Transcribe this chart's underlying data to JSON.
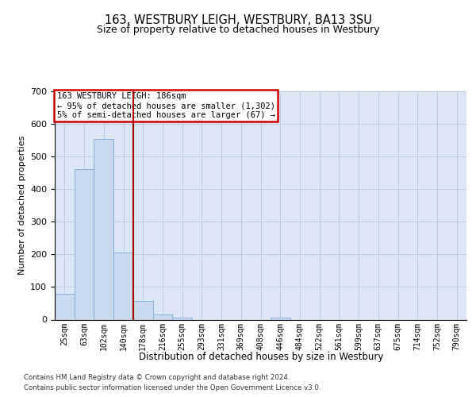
{
  "title": "163, WESTBURY LEIGH, WESTBURY, BA13 3SU",
  "subtitle": "Size of property relative to detached houses in Westbury",
  "xlabel": "Distribution of detached houses by size in Westbury",
  "ylabel": "Number of detached properties",
  "bin_labels": [
    "25sqm",
    "63sqm",
    "102sqm",
    "140sqm",
    "178sqm",
    "216sqm",
    "255sqm",
    "293sqm",
    "331sqm",
    "369sqm",
    "408sqm",
    "446sqm",
    "484sqm",
    "522sqm",
    "561sqm",
    "599sqm",
    "637sqm",
    "675sqm",
    "714sqm",
    "752sqm",
    "790sqm"
  ],
  "bar_heights": [
    80,
    462,
    555,
    205,
    58,
    15,
    5,
    0,
    0,
    0,
    0,
    5,
    0,
    0,
    0,
    0,
    0,
    0,
    0,
    0,
    0
  ],
  "bar_color": "#cad9ef",
  "bar_edge_color": "#7bafd4",
  "grid_color": "#b8cce0",
  "background_color": "#dce6f5",
  "ylim": [
    0,
    700
  ],
  "yticks": [
    0,
    100,
    200,
    300,
    400,
    500,
    600,
    700
  ],
  "red_line_x": 3.5,
  "red_line_color": "#aa0000",
  "annotation_lines": [
    "163 WESTBURY LEIGH: 186sqm",
    "← 95% of detached houses are smaller (1,302)",
    "5% of semi-detached houses are larger (67) →"
  ],
  "footer_line1": "Contains HM Land Registry data © Crown copyright and database right 2024.",
  "footer_line2": "Contains public sector information licensed under the Open Government Licence v3.0."
}
